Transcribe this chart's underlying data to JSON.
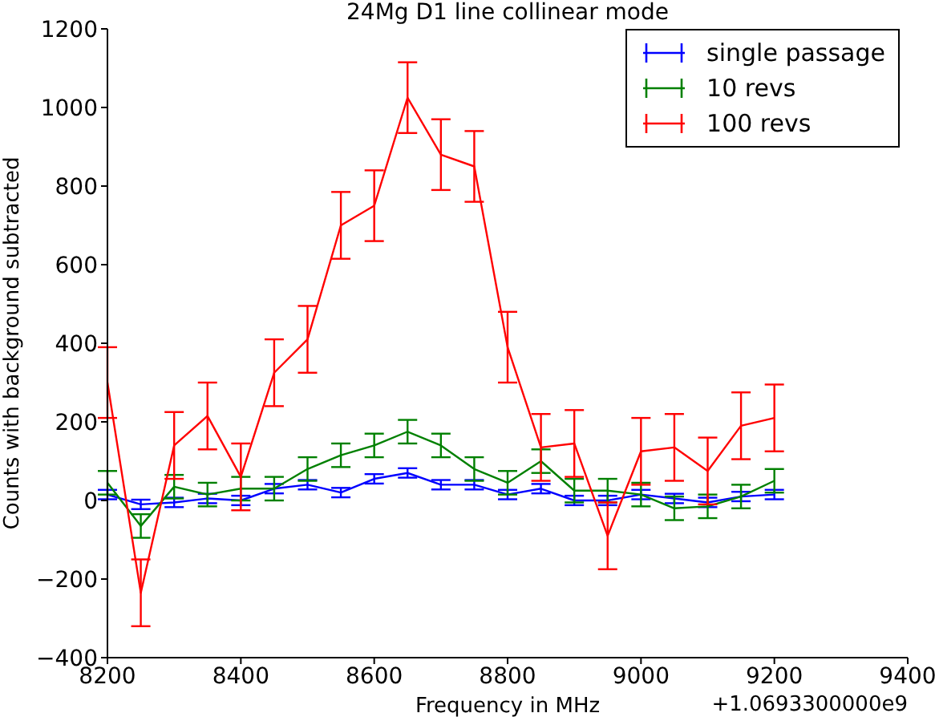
{
  "chart_data": {
    "type": "line",
    "title": "24Mg D1 line collinear mode",
    "xlabel": "Frequency in MHz",
    "ylabel": "Counts with background subtracted",
    "annotations": [
      "+1.0693300000e9"
    ],
    "x": [
      8200,
      8250,
      8300,
      8350,
      8400,
      8450,
      8500,
      8550,
      8600,
      8650,
      8700,
      8750,
      8800,
      8850,
      8900,
      8950,
      9000,
      9050,
      9100,
      9150,
      9200
    ],
    "series": [
      {
        "name": "single passage",
        "color": "#0000ff",
        "values": [
          15,
          -10,
          -5,
          5,
          0,
          30,
          40,
          20,
          55,
          70,
          40,
          40,
          15,
          30,
          0,
          0,
          15,
          5,
          -5,
          10,
          15
        ],
        "errors": [
          12,
          12,
          12,
          12,
          12,
          12,
          12,
          12,
          12,
          12,
          12,
          12,
          12,
          12,
          12,
          12,
          12,
          12,
          12,
          12,
          12
        ]
      },
      {
        "name": "10 revs",
        "color": "#008000",
        "values": [
          45,
          -65,
          35,
          15,
          30,
          30,
          80,
          115,
          140,
          175,
          140,
          80,
          45,
          100,
          25,
          25,
          15,
          -20,
          -15,
          10,
          50
        ],
        "errors": [
          30,
          30,
          30,
          30,
          30,
          30,
          30,
          30,
          30,
          30,
          30,
          30,
          30,
          30,
          30,
          30,
          30,
          30,
          30,
          30,
          30
        ]
      },
      {
        "name": "100 revs",
        "color": "#ff0000",
        "values": [
          300,
          -235,
          140,
          215,
          60,
          325,
          410,
          700,
          750,
          1025,
          880,
          850,
          390,
          135,
          145,
          -90,
          125,
          135,
          75,
          190,
          210
        ],
        "errors": [
          90,
          85,
          85,
          85,
          85,
          85,
          85,
          85,
          90,
          90,
          90,
          90,
          90,
          85,
          85,
          85,
          85,
          85,
          85,
          85,
          85
        ]
      }
    ],
    "xlim": [
      8200,
      9400
    ],
    "xticks": [
      8200,
      8400,
      8600,
      8800,
      9000,
      9200,
      9400
    ],
    "ylim": [
      -400,
      1200
    ],
    "yticks": [
      -400,
      -200,
      0,
      200,
      400,
      600,
      800,
      1000,
      1200
    ],
    "grid": false,
    "legend": "top right",
    "marker": "none",
    "line_style": "solid"
  }
}
